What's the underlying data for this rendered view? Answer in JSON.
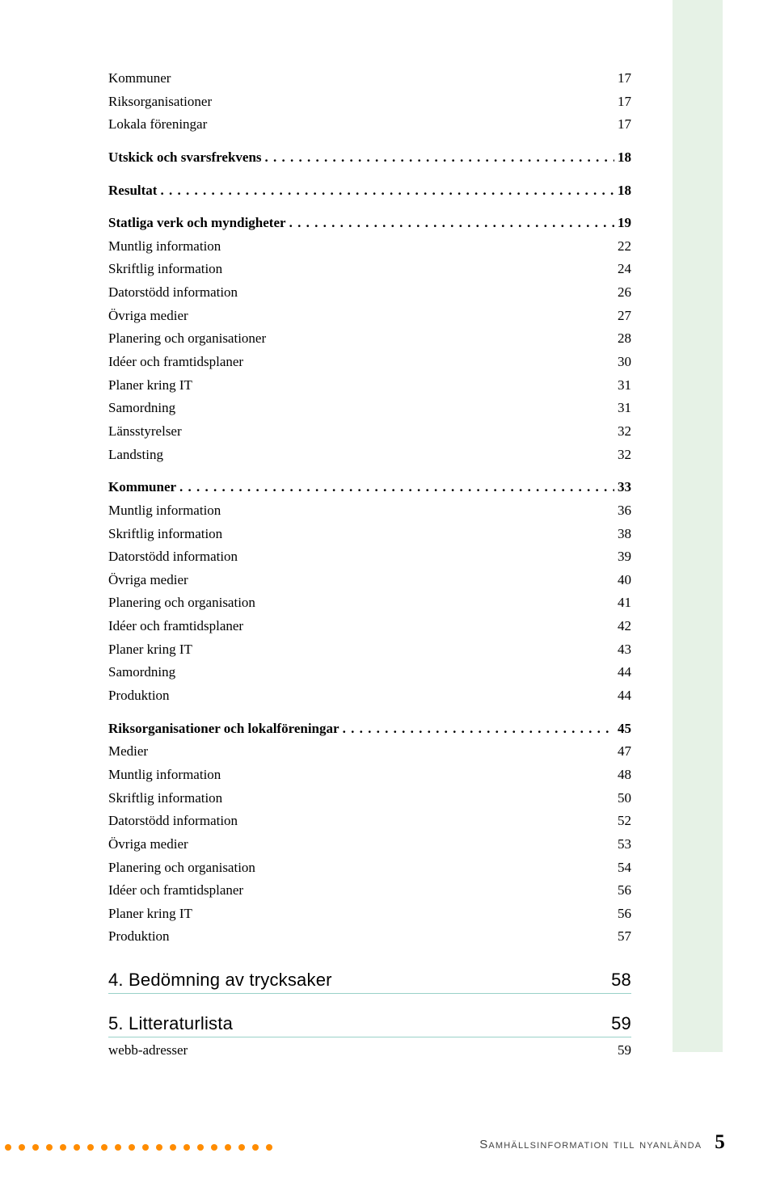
{
  "colors": {
    "page_bg": "#ffffff",
    "green_bar": "#e6f2e6",
    "teal_rule": "#9ad1c9",
    "dot_orange": "#ff8c00",
    "text": "#000000",
    "footer_text": "#444444"
  },
  "toc": {
    "sections": [
      {
        "type": "plain-block",
        "items": [
          {
            "label": "Kommuner",
            "page": "17"
          },
          {
            "label": "Riksorganisationer",
            "page": "17"
          },
          {
            "label": "Lokala föreningar",
            "page": "17"
          }
        ]
      },
      {
        "type": "bold-dotted",
        "items": [
          {
            "label": "Utskick och svarsfrekvens",
            "page": "18"
          }
        ]
      },
      {
        "type": "bold-dotted",
        "items": [
          {
            "label": "Resultat",
            "page": "18"
          }
        ]
      },
      {
        "type": "bold-dotted-header",
        "header": {
          "label": "Statliga verk och myndigheter",
          "page": "19"
        },
        "items": [
          {
            "label": "Muntlig information",
            "page": "22"
          },
          {
            "label": "Skriftlig information",
            "page": "24"
          },
          {
            "label": "Datorstödd information",
            "page": "26"
          },
          {
            "label": "Övriga medier",
            "page": "27"
          },
          {
            "label": "Planering och organisationer",
            "page": "28"
          },
          {
            "label": "Idéer och framtidsplaner",
            "page": "30"
          },
          {
            "label": "Planer kring IT",
            "page": "31"
          },
          {
            "label": "Samordning",
            "page": "31"
          },
          {
            "label": "Länsstyrelser",
            "page": "32"
          },
          {
            "label": "Landsting",
            "page": "32"
          }
        ]
      },
      {
        "type": "bold-dotted-header",
        "header": {
          "label": "Kommuner",
          "page": "33"
        },
        "items": [
          {
            "label": "Muntlig information",
            "page": "36"
          },
          {
            "label": "Skriftlig information",
            "page": "38"
          },
          {
            "label": "Datorstödd information",
            "page": "39"
          },
          {
            "label": "Övriga medier",
            "page": "40"
          },
          {
            "label": "Planering och organisation",
            "page": "41"
          },
          {
            "label": "Idéer och framtidsplaner",
            "page": "42"
          },
          {
            "label": "Planer kring IT",
            "page": "43"
          },
          {
            "label": "Samordning",
            "page": "44"
          },
          {
            "label": "Produktion",
            "page": "44"
          }
        ]
      },
      {
        "type": "bold-dotted-header",
        "header": {
          "label": "Riksorganisationer och lokalföreningar",
          "page": "45"
        },
        "items": [
          {
            "label": "Medier",
            "page": "47"
          },
          {
            "label": "Muntlig information",
            "page": "48"
          },
          {
            "label": "Skriftlig information",
            "page": "50"
          },
          {
            "label": "Datorstödd information",
            "page": "52"
          },
          {
            "label": "Övriga medier",
            "page": "53"
          },
          {
            "label": "Planering och organisation",
            "page": "54"
          },
          {
            "label": "Idéer och framtidsplaner",
            "page": "56"
          },
          {
            "label": "Planer kring IT",
            "page": "56"
          },
          {
            "label": "Produktion",
            "page": "57"
          }
        ]
      },
      {
        "type": "chapter",
        "items": [
          {
            "label": "4. Bedömning av trycksaker",
            "page": "58"
          }
        ]
      },
      {
        "type": "chapter-with-sub",
        "header": {
          "label": "5. Litteraturlista",
          "page": "59"
        },
        "items": [
          {
            "label": "webb-adresser",
            "page": "59"
          }
        ]
      }
    ]
  },
  "footer": {
    "text": "Samhällsinformation till nyanlända",
    "page_number": "5",
    "dot_count": 20
  }
}
